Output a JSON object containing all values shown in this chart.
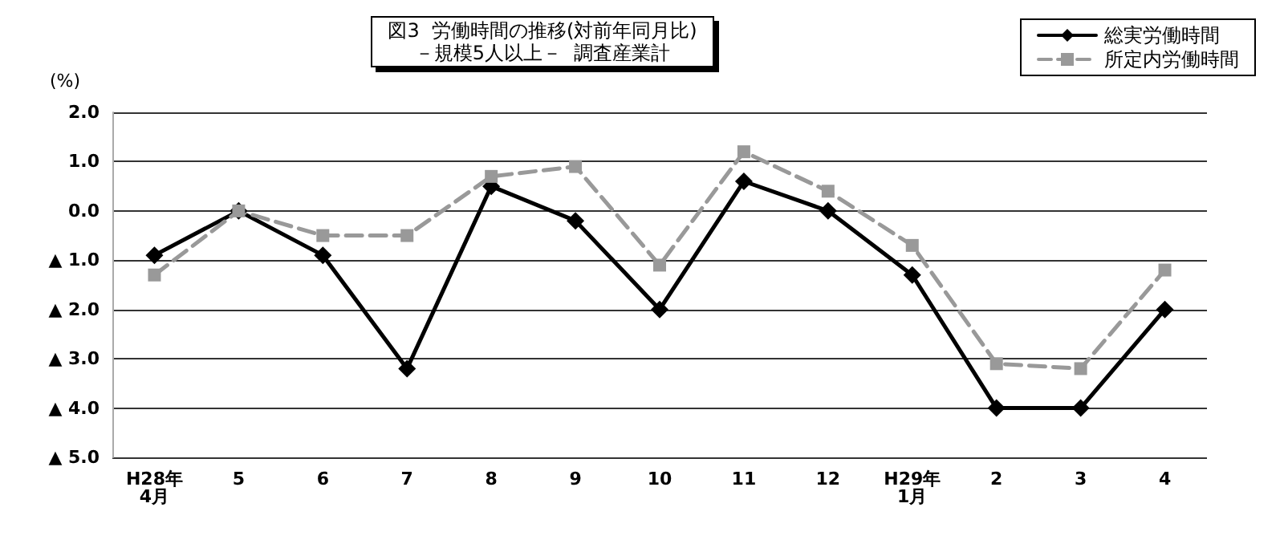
{
  "chart_data": {
    "type": "line",
    "title": "図3  労働時間の推移(対前年同月比)",
    "subtitle": "－規模5人以上－  調査産業計",
    "ylabel": "(%)",
    "categories": [
      "H28年\n4月",
      "5",
      "6",
      "7",
      "8",
      "9",
      "10",
      "11",
      "12",
      "H29年\n1月",
      "2",
      "3",
      "4"
    ],
    "series": [
      {
        "name": "総実労働時間",
        "color": "#000000",
        "marker": "diamond",
        "line_style": "solid",
        "values": [
          -0.9,
          0.0,
          -0.9,
          -3.2,
          0.5,
          -0.2,
          -2.0,
          0.6,
          0.0,
          -1.3,
          -4.0,
          -4.0,
          -2.0
        ]
      },
      {
        "name": "所定内労働時間",
        "color": "#999999",
        "marker": "square",
        "line_style": "dashed",
        "values": [
          -1.3,
          0.0,
          -0.5,
          -0.5,
          0.7,
          0.9,
          -1.1,
          1.2,
          0.4,
          -0.7,
          -3.1,
          -3.2,
          -1.2
        ]
      }
    ],
    "ylim": [
      -5,
      2
    ],
    "yticks": [
      {
        "value": -5,
        "label": "▲ 5.0"
      },
      {
        "value": -4,
        "label": "▲ 4.0"
      },
      {
        "value": -3,
        "label": "▲ 3.0"
      },
      {
        "value": -2,
        "label": "▲ 2.0"
      },
      {
        "value": -1,
        "label": "▲ 1.0"
      },
      {
        "value": 0,
        "label": "0.0"
      },
      {
        "value": 1,
        "label": "1.0"
      },
      {
        "value": 2,
        "label": "2.0"
      }
    ],
    "grid": "y",
    "legend": "top right"
  }
}
